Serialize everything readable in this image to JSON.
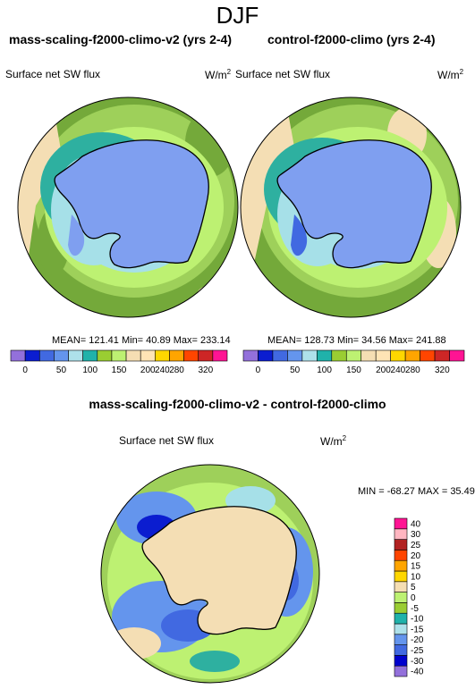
{
  "season": "DJF",
  "variable": "Surface net SW flux",
  "units": "W/m",
  "units_sup": "2",
  "colors": {
    "ocean_base": "#9ed05a",
    "ocean_outer": "#74a93a",
    "ice_blue": "#7f9ff0",
    "ice_edge": "#a6e0e8",
    "teal": "#2eb0a0",
    "land_tan": "#f4deb4",
    "diff_zero": "#f4deb4",
    "coast": "#000000"
  },
  "panels": [
    {
      "title": "mass-scaling-f2000-climo-v2 (yrs 2-4)",
      "stats": "MEAN= 121.41  Min=  40.89  Max= 233.14"
    },
    {
      "title": "control-f2000-climo (yrs 2-4)",
      "stats": "MEAN= 128.73  Min=  34.56  Max= 241.88"
    }
  ],
  "diff": {
    "title": "mass-scaling-f2000-climo-v2 - control-f2000-climo",
    "stats": "MIN = -68.27 MAX =  35.49"
  },
  "colorbar_main": {
    "colors": [
      "#9370db",
      "#0b1dd0",
      "#4169e1",
      "#6495ed",
      "#aee1ea",
      "#20b2aa",
      "#9acd32",
      "#bdf172",
      "#f5deb3",
      "#ffe4b5",
      "#ffd700",
      "#ffa500",
      "#ff4500",
      "#cd2626",
      "#ff1493"
    ],
    "labels": [
      "0",
      "50",
      "100",
      "150",
      "200",
      "240",
      "280",
      "320"
    ]
  },
  "colorbar_diff": {
    "colors": [
      "#9370db",
      "#0000cd",
      "#4169e1",
      "#6495ed",
      "#aee1ea",
      "#20b2aa",
      "#9acd32",
      "#bdf172",
      "#f5deb3",
      "#ffd700",
      "#ffa500",
      "#ff4500",
      "#b22222",
      "#ffb6c1",
      "#ff1493"
    ],
    "labels": [
      "-40",
      "-30",
      "-25",
      "-20",
      "-15",
      "-10",
      "-5",
      "0",
      "5",
      "10",
      "15",
      "20",
      "25",
      "30",
      "40"
    ]
  }
}
